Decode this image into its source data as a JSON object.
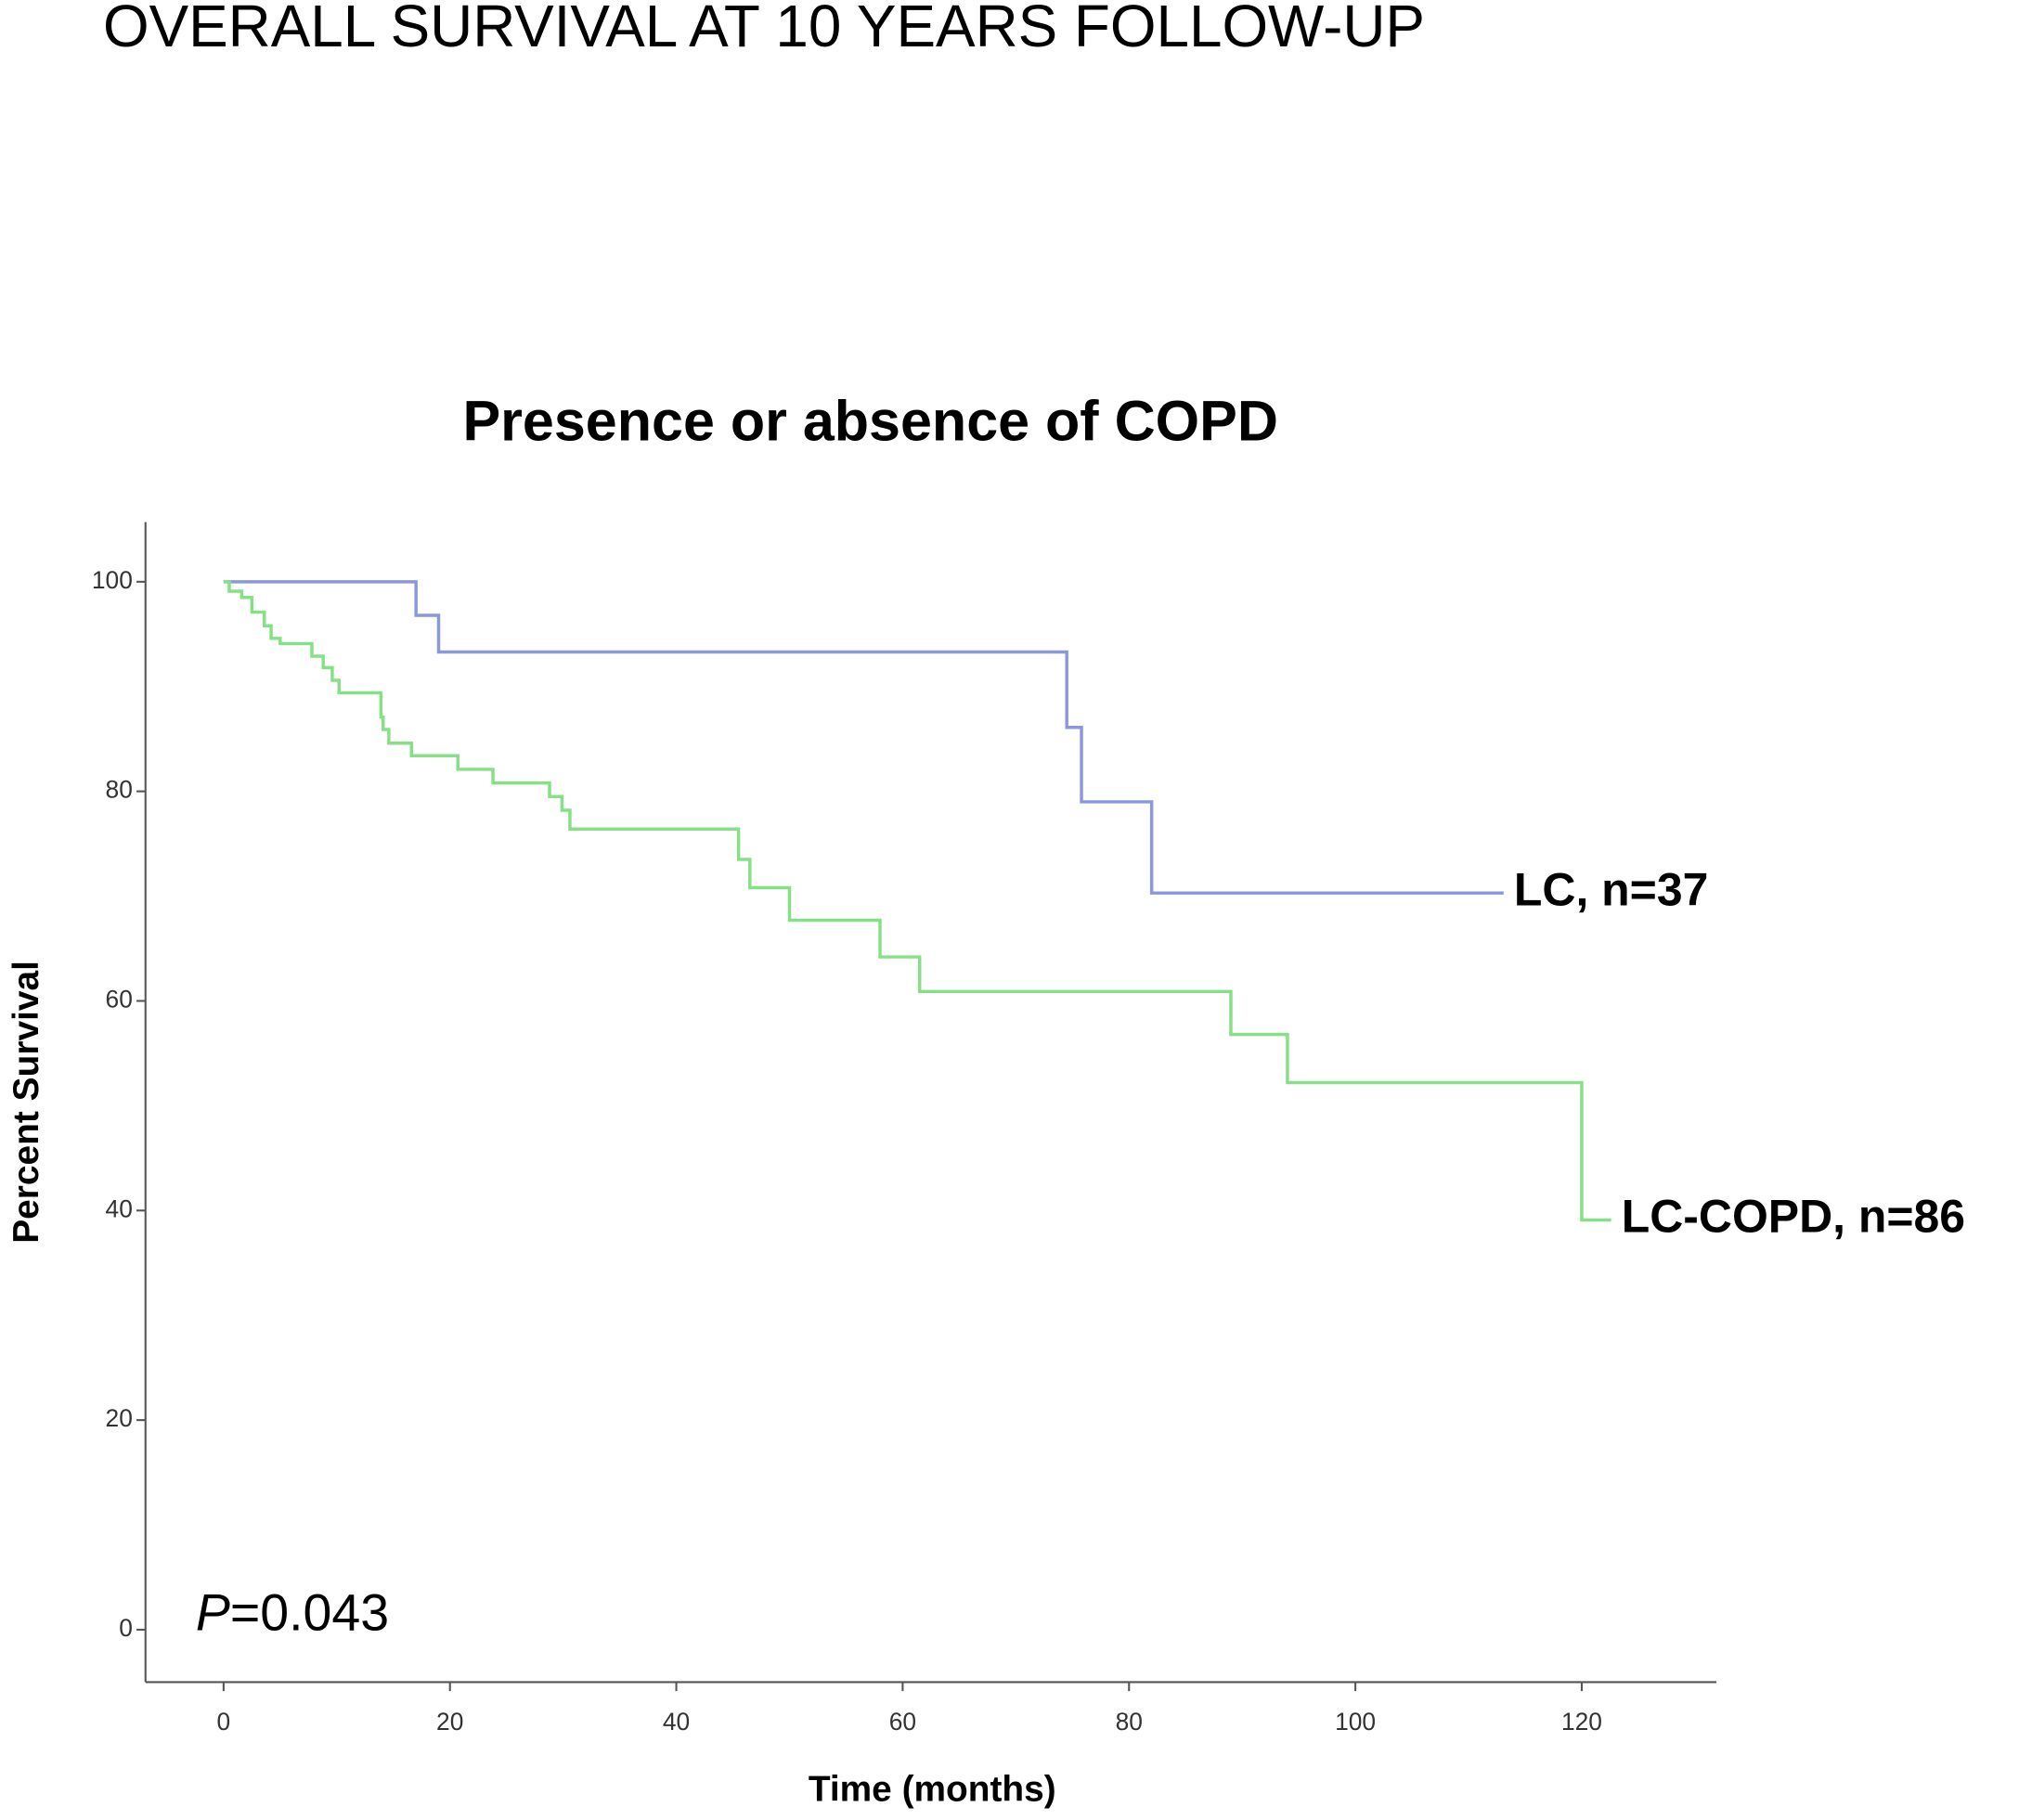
{
  "page_title": "OVERALL SURVIVAL AT 10 YEARS FOLLOW-UP",
  "chart_data": {
    "type": "line",
    "drawstyle": "steps-post",
    "title": "Presence or absence of COPD",
    "x_label": "Time (months)",
    "y_label": "Percent Survival",
    "annotation": {
      "symbol": "P",
      "text": "=0.043"
    },
    "xlim": [
      -6.9,
      131.9
    ],
    "ylim": [
      -5,
      105.7
    ],
    "xticks": [
      0,
      20,
      40,
      60,
      80,
      100,
      120
    ],
    "yticks": [
      0,
      20,
      40,
      60,
      80,
      100
    ],
    "series": [
      {
        "name": "LC, n=37",
        "color": "#8a98dc",
        "x": [
          0,
          17,
          19,
          74.5,
          75.8,
          82,
          113.1
        ],
        "values": [
          100,
          96.8,
          93.3,
          86.1,
          79.0,
          70.3,
          70.3
        ]
      },
      {
        "name": "LC-COPD,  n=86",
        "color": "#86e086",
        "x": [
          0,
          0.5,
          1.6,
          2.5,
          3.6,
          4.2,
          5,
          7.8,
          8.8,
          9.6,
          10.2,
          13.9,
          14.1,
          14.6,
          16.6,
          20.7,
          23.8,
          28.8,
          29.9,
          30.6,
          45.5,
          46.5,
          50,
          58,
          61.5,
          89,
          94,
          120,
          122.6
        ],
        "values": [
          100,
          99.1,
          98.5,
          97.1,
          95.8,
          94.6,
          94.1,
          92.9,
          91.8,
          90.6,
          89.4,
          87.1,
          85.9,
          84.6,
          83.4,
          82.1,
          80.8,
          79.5,
          78.2,
          76.4,
          73.5,
          70.8,
          67.7,
          64.2,
          60.9,
          56.8,
          52.2,
          39.1,
          39.1
        ]
      }
    ]
  }
}
